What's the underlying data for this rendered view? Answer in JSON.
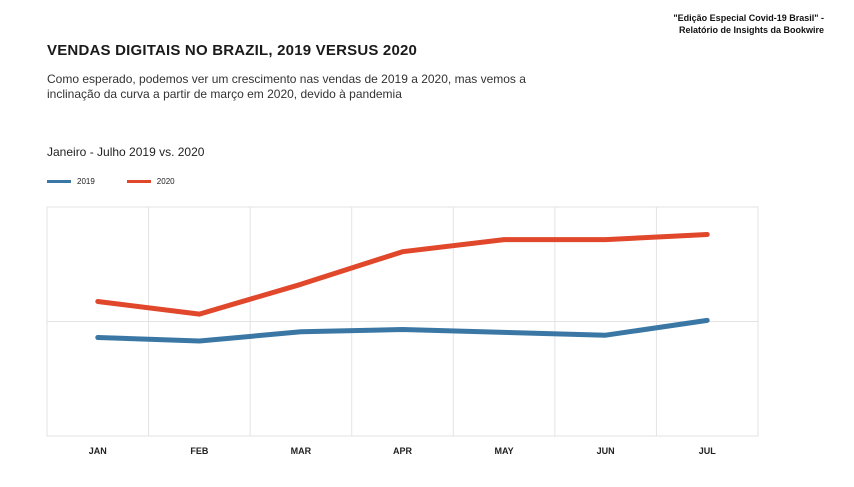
{
  "source": {
    "line1": "\"Edição Especial Covid-19 Brasil\" -",
    "line2": "Relatório de Insights da Bookwire"
  },
  "header": {
    "title": "VENDAS DIGITAIS NO BRAZIL, 2019 VERSUS 2020",
    "subtitle_line1": "Como esperado, podemos ver um crescimento nas vendas de 2019 a 2020, mas vemos a",
    "subtitle_line2": "inclinação da curva a partir de março em 2020, devido à pandemia"
  },
  "chart_data": {
    "type": "line",
    "title": "Janeiro - Julho 2019 vs. 2020",
    "categories": [
      "JAN",
      "FEB",
      "MAR",
      "APR",
      "MAY",
      "JUN",
      "JUL"
    ],
    "series": [
      {
        "name": "2019",
        "color": "#3a77a5",
        "values": [
          1.72,
          1.66,
          1.82,
          1.86,
          1.81,
          1.76,
          2.02
        ]
      },
      {
        "name": "2020",
        "color": "#e0472b",
        "values": [
          2.35,
          2.13,
          2.65,
          3.22,
          3.43,
          3.43,
          3.52
        ]
      }
    ],
    "xlabel": "",
    "ylabel": "",
    "ylim": [
      0,
      4
    ],
    "grid": true,
    "legend": "top-left"
  }
}
